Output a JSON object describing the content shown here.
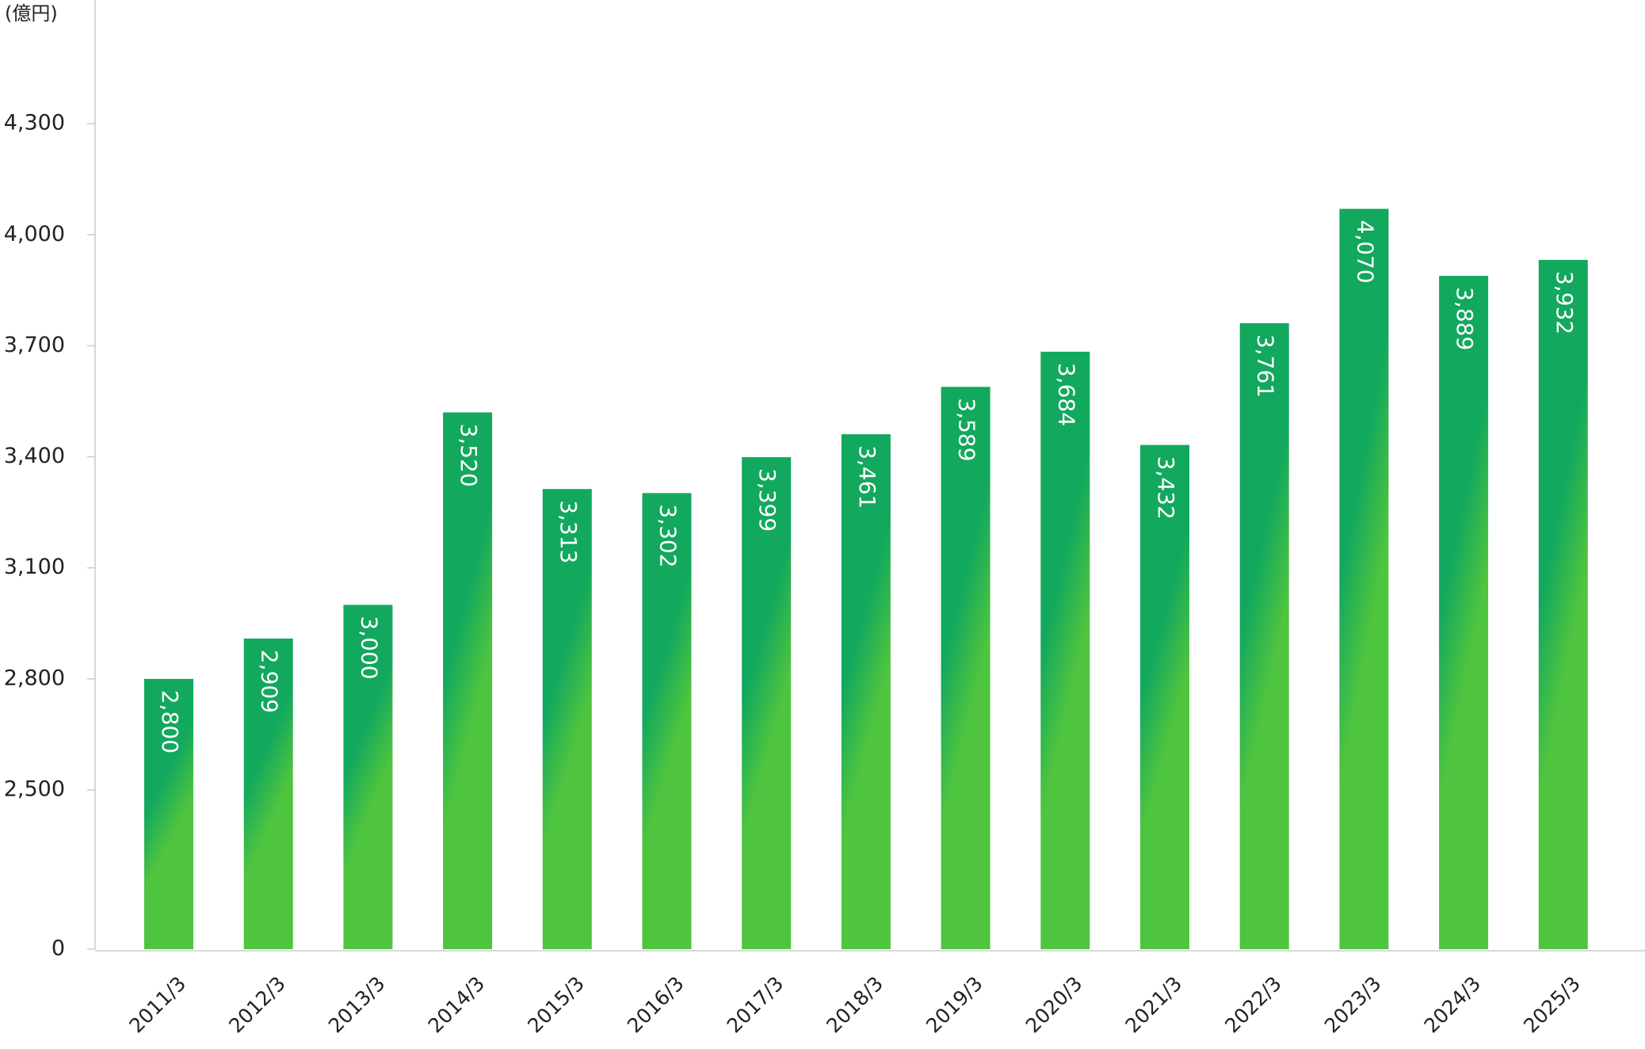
{
  "chart_data": {
    "type": "bar",
    "y_unit": "(億円)",
    "categories": [
      "2011/3",
      "2012/3",
      "2013/3",
      "2014/3",
      "2015/3",
      "2016/3",
      "2017/3",
      "2018/3",
      "2019/3",
      "2020/3",
      "2021/3",
      "2022/3",
      "2023/3",
      "2024/3",
      "2025/3"
    ],
    "values": [
      2800,
      2909,
      3000,
      3520,
      3313,
      3302,
      3399,
      3461,
      3589,
      3684,
      3432,
      3761,
      4070,
      3889,
      3932
    ],
    "value_labels": [
      "2,800",
      "2,909",
      "3,000",
      "3,520",
      "3,313",
      "3,302",
      "3,399",
      "3,461",
      "3,589",
      "3,684",
      "3,432",
      "3,761",
      "4,070",
      "3,889",
      "3,932"
    ],
    "gradient_colors": [
      "#12a85e",
      "#4fc43f"
    ],
    "ylim": [
      0,
      4600
    ],
    "yticks": [
      0,
      {
        "value": 2500,
        "label": "2,500"
      },
      {
        "value": 2800,
        "label": "2,800"
      },
      {
        "value": 3100,
        "label": "3,100"
      },
      {
        "value": 3400,
        "label": "3,400"
      },
      {
        "value": 3700,
        "label": "3,700"
      },
      {
        "value": 4000,
        "label": "4,000"
      },
      {
        "value": 4300,
        "label": "4,300"
      }
    ],
    "grid": false
  }
}
